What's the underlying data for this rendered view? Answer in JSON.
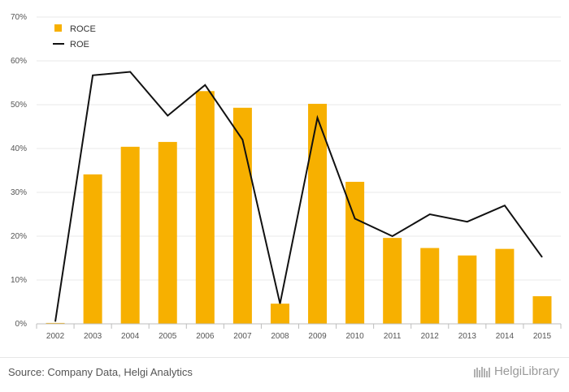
{
  "chart_data": {
    "type": "bar",
    "categories": [
      "2002",
      "2003",
      "2004",
      "2005",
      "2006",
      "2007",
      "2008",
      "2009",
      "2010",
      "2011",
      "2012",
      "2013",
      "2014",
      "2015"
    ],
    "series": [
      {
        "name": "ROCE",
        "type": "bar",
        "color": "#F7B000",
        "values": [
          0.2,
          34.1,
          40.4,
          41.5,
          53.1,
          49.3,
          4.6,
          50.2,
          32.4,
          19.6,
          17.3,
          15.6,
          17.1,
          6.3
        ]
      },
      {
        "name": "ROE",
        "type": "line",
        "color": "#111111",
        "values": [
          0.5,
          56.7,
          57.5,
          47.5,
          54.5,
          42.0,
          4.6,
          47.0,
          24.0,
          20.0,
          25.0,
          23.3,
          27.0,
          15.2
        ]
      }
    ],
    "yticks": [
      "0%",
      "10%",
      "20%",
      "30%",
      "40%",
      "50%",
      "60%",
      "70%"
    ],
    "ylim": [
      0,
      70
    ],
    "grid": true,
    "legend_position": "top-left"
  },
  "footer": {
    "source": "Source: Company Data, Helgi Analytics",
    "brand": "HelgiLibrary"
  }
}
